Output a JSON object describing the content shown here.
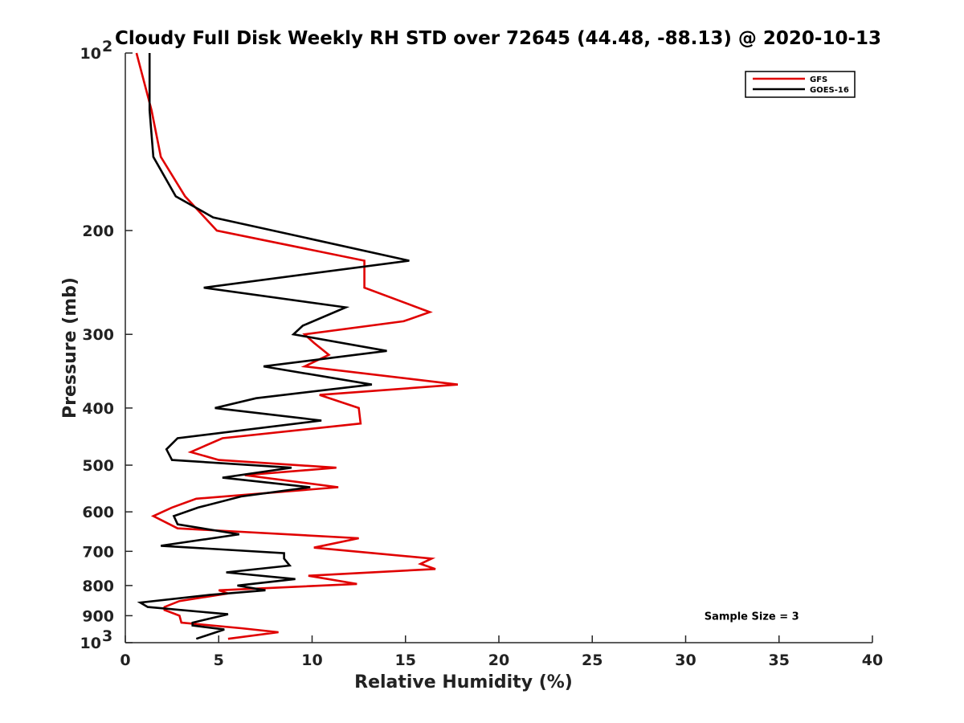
{
  "chart_data": {
    "type": "line",
    "title": "Cloudy Full Disk Weekly RH STD over 72645 (44.48, -88.13) @ 2020-10-13",
    "xlabel": "Relative Humidity (%)",
    "ylabel": "Pressure (mb)",
    "xlim": [
      0,
      40
    ],
    "ylim": [
      100,
      1000
    ],
    "y_scale": "log",
    "y_reversed": true,
    "grid": false,
    "legend_position": "top-right",
    "x_ticks": [
      "0",
      "5",
      "10",
      "15",
      "20",
      "25",
      "30",
      "35",
      "40"
    ],
    "y_ticks": [
      {
        "value": 100,
        "base": "10",
        "exp": "2"
      },
      {
        "value": 200,
        "label": "200"
      },
      {
        "value": 300,
        "label": "300"
      },
      {
        "value": 400,
        "label": "400"
      },
      {
        "value": 500,
        "label": "500"
      },
      {
        "value": 600,
        "label": "600"
      },
      {
        "value": 700,
        "label": "700"
      },
      {
        "value": 800,
        "label": "800"
      },
      {
        "value": 900,
        "label": "900"
      },
      {
        "value": 1000,
        "base": "10",
        "exp": "3"
      }
    ],
    "series": [
      {
        "name": "GFS",
        "color": "#e00000",
        "points": [
          [
            0.6,
            100
          ],
          [
            1.4,
            125
          ],
          [
            1.9,
            150
          ],
          [
            3.2,
            175
          ],
          [
            4.9,
            200
          ],
          [
            12.8,
            225
          ],
          [
            12.8,
            250
          ],
          [
            16.3,
            275
          ],
          [
            14.9,
            285
          ],
          [
            9.6,
            300
          ],
          [
            10.1,
            310
          ],
          [
            10.9,
            325
          ],
          [
            9.6,
            340
          ],
          [
            17.8,
            365
          ],
          [
            10.4,
            380
          ],
          [
            12.5,
            400
          ],
          [
            12.6,
            425
          ],
          [
            5.2,
            450
          ],
          [
            3.5,
            475
          ],
          [
            5.0,
            490
          ],
          [
            11.3,
            505
          ],
          [
            6.4,
            520
          ],
          [
            11.4,
            545
          ],
          [
            3.8,
            570
          ],
          [
            2.5,
            590
          ],
          [
            1.5,
            610
          ],
          [
            2.8,
            640
          ],
          [
            12.5,
            665
          ],
          [
            10.1,
            690
          ],
          [
            16.4,
            720
          ],
          [
            15.8,
            735
          ],
          [
            16.6,
            750
          ],
          [
            9.8,
            770
          ],
          [
            12.4,
            795
          ],
          [
            5.0,
            815
          ],
          [
            5.5,
            825
          ],
          [
            2.9,
            850
          ],
          [
            2.1,
            870
          ],
          [
            2.1,
            880
          ],
          [
            2.9,
            900
          ],
          [
            3.0,
            925
          ],
          [
            6.2,
            945
          ],
          [
            8.2,
            960
          ],
          [
            5.5,
            985
          ]
        ]
      },
      {
        "name": "GOES-16",
        "color": "#000000",
        "points": [
          [
            1.3,
            100
          ],
          [
            1.3,
            125
          ],
          [
            1.5,
            150
          ],
          [
            2.7,
            175
          ],
          [
            4.7,
            190
          ],
          [
            7.9,
            200
          ],
          [
            15.2,
            225
          ],
          [
            4.2,
            250
          ],
          [
            11.8,
            270
          ],
          [
            9.5,
            290
          ],
          [
            9.0,
            300
          ],
          [
            14.0,
            320
          ],
          [
            7.4,
            340
          ],
          [
            13.2,
            365
          ],
          [
            7.0,
            385
          ],
          [
            4.8,
            400
          ],
          [
            10.5,
            420
          ],
          [
            2.8,
            450
          ],
          [
            2.2,
            470
          ],
          [
            2.5,
            490
          ],
          [
            8.9,
            505
          ],
          [
            5.2,
            525
          ],
          [
            9.9,
            545
          ],
          [
            6.2,
            565
          ],
          [
            3.9,
            590
          ],
          [
            2.6,
            610
          ],
          [
            2.8,
            630
          ],
          [
            6.1,
            655
          ],
          [
            1.9,
            685
          ],
          [
            8.5,
            705
          ],
          [
            8.5,
            720
          ],
          [
            8.8,
            740
          ],
          [
            5.4,
            760
          ],
          [
            9.1,
            780
          ],
          [
            6.0,
            800
          ],
          [
            7.5,
            815
          ],
          [
            4.5,
            830
          ],
          [
            0.8,
            855
          ],
          [
            1.2,
            870
          ],
          [
            5.5,
            895
          ],
          [
            3.6,
            925
          ],
          [
            3.6,
            935
          ],
          [
            5.3,
            950
          ],
          [
            3.8,
            985
          ]
        ]
      }
    ],
    "annotations": [
      {
        "text": "Sample Size = 3",
        "x": 35.3,
        "y": 900
      }
    ]
  }
}
